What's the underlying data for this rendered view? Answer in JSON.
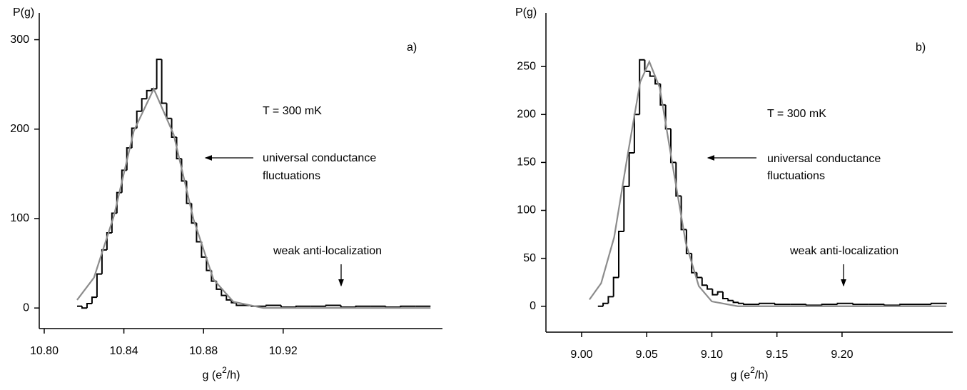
{
  "chart_data": [
    {
      "type": "histogram",
      "ylabel": "P(g)",
      "xlabel": {
        "text": "g (e",
        "sup": "2",
        "tail": "/h)"
      },
      "annotations": [
        "a)",
        "T = 300 mK",
        "universal conductance",
        "fluctuations",
        "weak anti-localization"
      ],
      "color": "#000000",
      "bins": [
        10.8165,
        10.819,
        10.8215,
        10.824,
        10.8265,
        10.829,
        10.8315,
        10.834,
        10.8365,
        10.839,
        10.8415,
        10.844,
        10.8465,
        10.849,
        10.8515,
        10.854,
        10.8565,
        10.859,
        10.8615,
        10.864,
        10.8665,
        10.869,
        10.8715,
        10.874,
        10.8765,
        10.879,
        10.8815,
        10.884,
        10.8865,
        10.889,
        10.8915,
        10.894,
        10.8965,
        10.904,
        10.9115,
        10.919,
        10.9265,
        10.934,
        10.9415,
        10.949,
        10.9565,
        10.964,
        10.9715,
        10.979,
        10.9865,
        10.994
      ],
      "values": [
        2,
        0,
        5,
        12,
        38,
        65,
        84,
        106,
        129,
        154,
        179,
        201,
        220,
        234,
        243,
        245,
        278,
        229,
        212,
        191,
        167,
        142,
        117,
        95,
        74,
        57,
        42,
        30,
        21,
        14,
        9,
        6,
        3,
        2,
        3,
        1,
        2,
        2,
        3,
        1,
        2,
        2,
        1,
        2,
        2
      ],
      "fit": {
        "type": "line",
        "color": "#8c8c8c",
        "x": [
          10.8165,
          10.825,
          10.835,
          10.845,
          10.855,
          10.865,
          10.875,
          10.885,
          10.895,
          10.91,
          10.94,
          10.994
        ],
        "values": [
          9,
          34,
          103,
          198,
          245,
          194,
          99,
          32,
          7,
          0,
          0,
          0
        ]
      },
      "xlim": [
        10.7975,
        11.0
      ],
      "ylim": [
        -23,
        330
      ],
      "xticks": [
        {
          "value": 10.8,
          "label": "10.80"
        },
        10.84,
        10.88,
        10.92
      ],
      "yticks": [
        0,
        100,
        200,
        300
      ]
    },
    {
      "type": "histogram",
      "ylabel": "P(g)",
      "xlabel": {
        "text": "g (e",
        "sup": "2",
        "tail": "/h)"
      },
      "annotations": [
        "b)",
        "T = 300 mK",
        "universal conductance",
        "fluctuations",
        "weak anti-localization"
      ],
      "color": "#000000",
      "bins": [
        9.0125,
        9.0165,
        9.0205,
        9.0245,
        9.0285,
        9.0325,
        9.0365,
        9.0405,
        9.0445,
        9.0485,
        9.0525,
        9.0565,
        9.0605,
        9.0645,
        9.0685,
        9.0725,
        9.0765,
        9.0805,
        9.0845,
        9.0885,
        9.0925,
        9.0965,
        9.1005,
        9.1045,
        9.1085,
        9.1125,
        9.1165,
        9.1205,
        9.1245,
        9.1365,
        9.1485,
        9.1605,
        9.1725,
        9.1845,
        9.1965,
        9.2085,
        9.2205,
        9.2325,
        9.2445,
        9.2565,
        9.2685,
        9.2805
      ],
      "values": [
        0,
        3,
        10,
        30,
        78,
        125,
        160,
        200,
        257,
        245,
        240,
        232,
        210,
        185,
        150,
        115,
        80,
        55,
        35,
        30,
        22,
        18,
        12,
        15,
        8,
        6,
        4,
        3,
        2,
        3,
        2,
        2,
        1,
        2,
        3,
        2,
        2,
        1,
        2,
        2,
        3
      ],
      "fit": {
        "type": "line",
        "color": "#8c8c8c",
        "x": [
          9.006,
          9.015,
          9.025,
          9.035,
          9.045,
          9.052,
          9.06,
          9.07,
          9.08,
          9.09,
          9.1,
          9.12,
          9.16,
          9.2,
          9.28
        ],
        "values": [
          7,
          24,
          72,
          155,
          234,
          255,
          228,
          146,
          66,
          21,
          5,
          0,
          0,
          0,
          0
        ]
      },
      "xlim": [
        8.9726,
        9.285
      ],
      "ylim": [
        -27,
        306
      ],
      "xticks": [
        {
          "value": 9.0,
          "label": "9.00"
        },
        9.05,
        {
          "value": 9.1,
          "label": "9.10"
        },
        9.15,
        {
          "value": 9.2,
          "label": "9.20"
        }
      ],
      "yticks": [
        0,
        50,
        100,
        150,
        200,
        250
      ]
    }
  ]
}
